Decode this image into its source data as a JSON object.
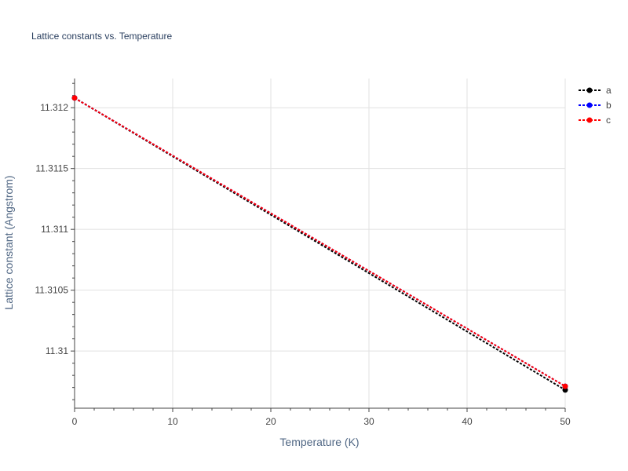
{
  "chart_data": {
    "type": "line",
    "title": "Lattice constants vs. Temperature",
    "xlabel": "Temperature (K)",
    "ylabel": "Lattice constant (Angstrom)",
    "xlim": [
      0,
      50
    ],
    "ylim": [
      11.30953,
      11.31224
    ],
    "x_ticks": [
      "0",
      "10",
      "20",
      "30",
      "40",
      "50"
    ],
    "y_ticks": [
      "11.31",
      "11.3105",
      "11.311",
      "11.3115",
      "11.312"
    ],
    "grid": true,
    "legend_position": "top-right",
    "series": [
      {
        "name": "a",
        "color": "#000000",
        "x": [
          0,
          50
        ],
        "y": [
          11.31208,
          11.30968
        ]
      },
      {
        "name": "b",
        "color": "#0000ff",
        "x": [
          0,
          50
        ],
        "y": [
          11.31208,
          11.30971
        ]
      },
      {
        "name": "c",
        "color": "#ff0000",
        "x": [
          0,
          50
        ],
        "y": [
          11.31208,
          11.30971
        ]
      }
    ]
  }
}
